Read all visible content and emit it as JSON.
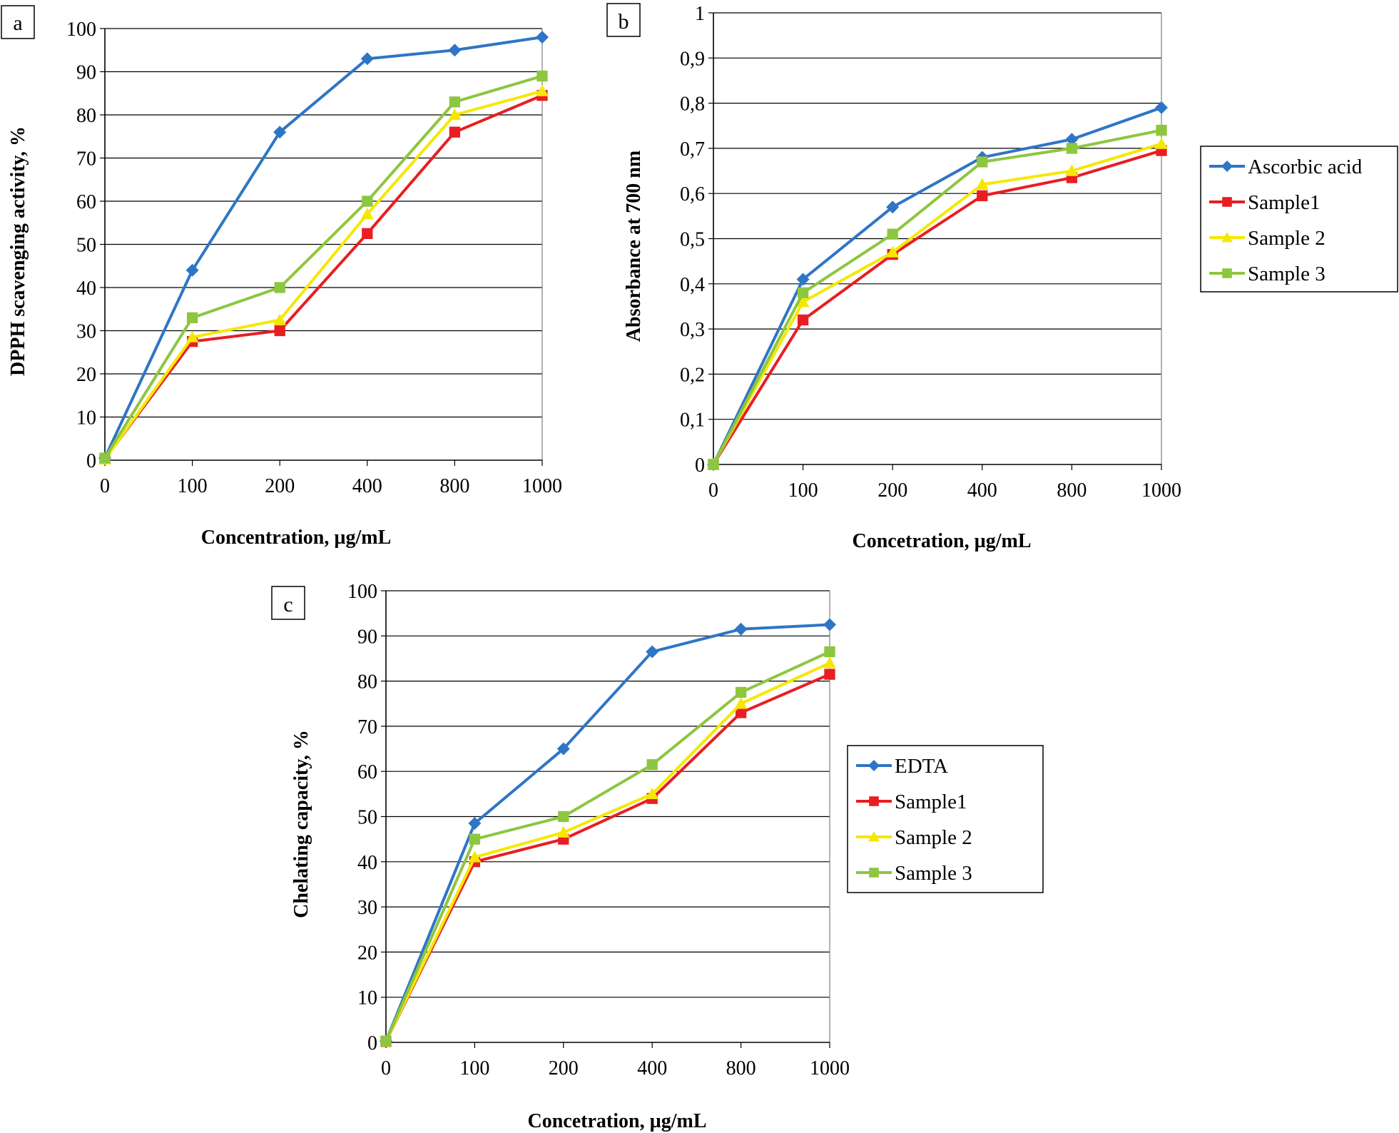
{
  "colors": {
    "series": [
      "#2E75C6",
      "#E81E22",
      "#F5E800",
      "#8DC63F"
    ],
    "grid": "#000000",
    "frame": "#808080"
  },
  "chart_data": [
    {
      "panel": "a",
      "type": "line",
      "categories": [
        "0",
        "100",
        "200",
        "400",
        "800",
        "1000"
      ],
      "xlabel": "Concentration, µg/mL",
      "ylabel": "DPPH scavenging activity, %",
      "ylim": [
        0,
        100
      ],
      "yticks": [
        "0",
        "10",
        "20",
        "30",
        "40",
        "50",
        "60",
        "70",
        "80",
        "90",
        "100"
      ],
      "grid": true,
      "legend": "none",
      "series": [
        {
          "values": [
            0.5,
            44,
            76,
            93,
            95,
            98
          ],
          "marker": "diamond"
        },
        {
          "values": [
            0.3,
            27.5,
            30,
            52.5,
            76,
            84.5
          ],
          "marker": "square"
        },
        {
          "values": [
            0.2,
            28.5,
            32.5,
            57,
            80,
            85.5
          ],
          "marker": "triangle"
        },
        {
          "values": [
            0.5,
            33,
            40,
            60,
            83,
            89
          ],
          "marker": "square"
        }
      ]
    },
    {
      "panel": "b",
      "type": "line",
      "categories": [
        "0",
        "100",
        "200",
        "400",
        "800",
        "1000"
      ],
      "xlabel": "Concetration, µg/mL",
      "ylabel": "Absorbance at 700 nm",
      "ylim": [
        0,
        1
      ],
      "yticks": [
        "0",
        "0,1",
        "0,2",
        "0,3",
        "0,4",
        "0,5",
        "0,6",
        "0,7",
        "0,8",
        "0,9",
        "1"
      ],
      "grid": true,
      "legend": "right",
      "series": [
        {
          "name": "Ascorbic acid",
          "values": [
            0,
            0.41,
            0.57,
            0.68,
            0.72,
            0.79
          ],
          "marker": "diamond"
        },
        {
          "name": "Sample1",
          "values": [
            0,
            0.32,
            0.465,
            0.595,
            0.635,
            0.695
          ],
          "marker": "square"
        },
        {
          "name": "Sample 2",
          "values": [
            0,
            0.36,
            0.47,
            0.62,
            0.65,
            0.71
          ],
          "marker": "triangle"
        },
        {
          "name": "Sample 3",
          "values": [
            0,
            0.38,
            0.51,
            0.67,
            0.7,
            0.74
          ],
          "marker": "square"
        }
      ]
    },
    {
      "panel": "c",
      "type": "line",
      "categories": [
        "0",
        "100",
        "200",
        "400",
        "800",
        "1000"
      ],
      "xlabel": "Concetration, µg/mL",
      "ylabel": "Chelating capacity, %",
      "ylim": [
        0,
        100
      ],
      "yticks": [
        "0",
        "10",
        "20",
        "30",
        "40",
        "50",
        "60",
        "70",
        "80",
        "90",
        "100"
      ],
      "grid": true,
      "legend": "right",
      "series": [
        {
          "name": "EDTA",
          "values": [
            0.3,
            48.5,
            65,
            86.5,
            91.5,
            92.5
          ],
          "marker": "diamond"
        },
        {
          "name": "Sample1",
          "values": [
            0.2,
            40,
            45,
            54,
            73,
            81.5
          ],
          "marker": "square"
        },
        {
          "name": "Sample 2",
          "values": [
            0.2,
            41,
            46.5,
            55,
            75,
            84
          ],
          "marker": "triangle"
        },
        {
          "name": "Sample 3",
          "values": [
            0.3,
            45,
            50,
            61.5,
            77.5,
            86.5
          ],
          "marker": "square"
        }
      ]
    }
  ]
}
